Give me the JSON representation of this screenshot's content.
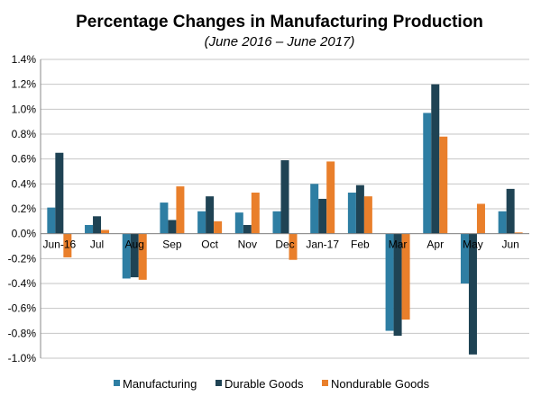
{
  "chart_data": {
    "type": "bar",
    "title": "Percentage Changes in Manufacturing Production",
    "subtitle": "(June 2016 – June 2017)",
    "xlabel": "",
    "ylabel": "",
    "ylim": [
      -1.0,
      1.4
    ],
    "ytick_step": 0.2,
    "ytick_format": "percent_1dp",
    "grid": true,
    "legend_position": "bottom",
    "categories": [
      "Jun-16",
      "Jul",
      "Aug",
      "Sep",
      "Oct",
      "Nov",
      "Dec",
      "Jan-17",
      "Feb",
      "Mar",
      "Apr",
      "May",
      "Jun"
    ],
    "series": [
      {
        "name": "Manufacturing",
        "color": "#2e7ea3",
        "values": [
          0.21,
          0.07,
          -0.36,
          0.25,
          0.18,
          0.17,
          0.18,
          0.4,
          0.33,
          -0.78,
          0.97,
          -0.4,
          0.18
        ]
      },
      {
        "name": "Durable Goods",
        "color": "#1f4354",
        "values": [
          0.65,
          0.14,
          -0.35,
          0.11,
          0.3,
          0.07,
          0.59,
          0.28,
          0.39,
          -0.82,
          1.2,
          -0.97,
          0.36
        ]
      },
      {
        "name": "Nondurable Goods",
        "color": "#e97f2b",
        "values": [
          -0.19,
          0.03,
          -0.37,
          0.38,
          0.1,
          0.33,
          -0.21,
          0.58,
          0.3,
          -0.69,
          0.78,
          0.24,
          0.01
        ]
      }
    ]
  }
}
